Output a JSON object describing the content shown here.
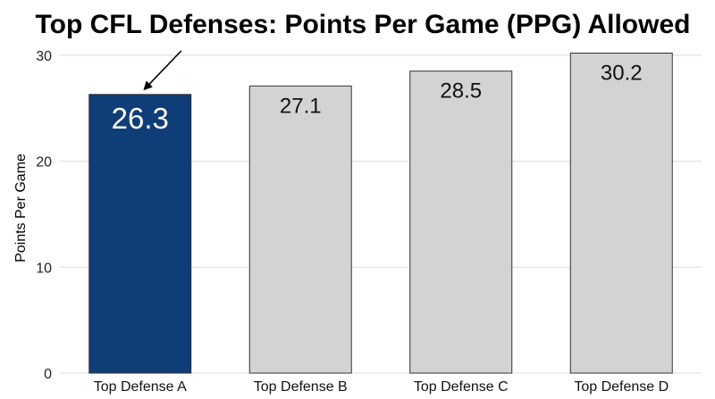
{
  "chart_data": {
    "type": "bar",
    "title": "Top CFL Defenses: Points Per Game (PPG) Allowed",
    "ylabel": "Points Per Game",
    "xlabel": "",
    "categories": [
      "Top Defense A",
      "Top Defense B",
      "Top Defense C",
      "Top Defense D"
    ],
    "values": [
      26.3,
      27.1,
      28.5,
      30.2
    ],
    "data_labels": [
      "26.3",
      "27.1",
      "28.5",
      "30.2"
    ],
    "yticks": [
      0,
      10,
      20,
      30
    ],
    "ytick_labels": [
      "0",
      "10",
      "20",
      "30"
    ],
    "ylim": [
      0,
      31
    ],
    "grid": true,
    "highlight_index": 0,
    "colors": {
      "highlight": "#0f3d78",
      "default": "#d3d3d3",
      "bar_edge": "#333333",
      "arrow": "#000000"
    },
    "annotation": {
      "type": "arrow",
      "target": "Top Defense A"
    }
  }
}
